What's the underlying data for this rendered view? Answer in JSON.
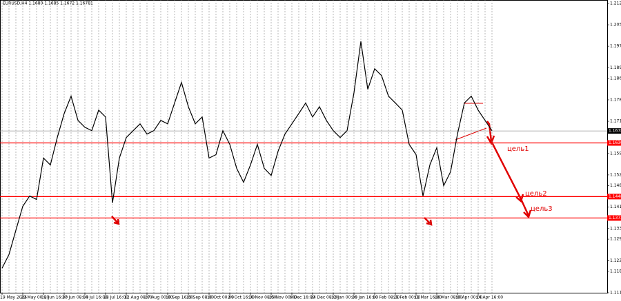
{
  "chart_data": {
    "type": "line",
    "title": "EURUSD,H4 1.1680 1.1685 1.1672 1.16781",
    "categories": [
      "19 May 2025",
      null,
      null,
      "29 May 00:00",
      null,
      null,
      "12 Jun 16:00",
      null,
      null,
      "27 Jun 08:00",
      null,
      null,
      "14 Jul 16:00",
      null,
      null,
      "28 Jul 16:00",
      null,
      null,
      "12 Aug 08:00",
      null,
      null,
      "27 Aug 00:00",
      null,
      null,
      "10 Sep 16:00",
      null,
      null,
      "25 Sep 08:00",
      null,
      null,
      "10 Oct 00:00",
      null,
      null,
      "24 Oct 16:00",
      null,
      null,
      "10 Nov 08:00",
      null,
      null,
      "25 Nov 00:00",
      null,
      null,
      "9 Dec 16:00",
      null,
      null,
      "24 Dec 08:00",
      null,
      null,
      "12 Jan 00:00",
      null,
      null,
      "26 Jan 16:00",
      null,
      null,
      "10 Feb 08:00",
      null,
      null,
      "25 Feb 00:00",
      null,
      null,
      "11 Mar 16:00",
      null,
      null,
      "26 Mar 08:00",
      null,
      null,
      "10 Apr 00:00",
      null,
      null,
      "24 Apr 16:00",
      null,
      null
    ],
    "series": [
      {
        "color": "#000000",
        "values": [
          1.1197,
          1.1245,
          1.133,
          1.1414,
          1.145,
          1.1438,
          1.1583,
          1.1559,
          1.1655,
          1.1739,
          1.18,
          1.1715,
          1.1691,
          1.1679,
          1.1751,
          1.1727,
          1.1426,
          1.1583,
          1.1655,
          1.1679,
          1.1703,
          1.1667,
          1.1679,
          1.1715,
          1.1703,
          1.1776,
          1.1848,
          1.1763,
          1.1703,
          1.1727,
          1.1583,
          1.1595,
          1.1679,
          1.1631,
          1.1547,
          1.1498,
          1.1559,
          1.1631,
          1.1547,
          1.1522,
          1.1607,
          1.1667,
          1.1703,
          1.1739,
          1.1776,
          1.1727,
          1.1763,
          1.1715,
          1.1679,
          1.1655,
          1.1679,
          1.1812,
          1.1992,
          1.1824,
          1.1896,
          1.1872,
          1.18,
          1.1776,
          1.1751,
          1.1631,
          1.1595,
          1.145,
          1.1559,
          1.1619,
          1.1486,
          1.1535,
          1.1667,
          1.1776,
          1.18,
          1.1751,
          1.1715,
          1.1679
        ]
      }
    ],
    "ylim": [
      1.1111,
      1.2137
    ],
    "yticks": [
      1.2125,
      {
        "value": 1.205,
        "label": "1.2050"
      },
      1.1975,
      1.1899,
      1.1862,
      1.1787,
      1.1712,
      1.1599,
      1.1524,
      1.1486,
      1.1411,
      1.1336,
      1.1299,
      1.1223,
      1.1186,
      1.1111
    ],
    "current_price": {
      "value": 1.1678,
      "label": "1.1678"
    },
    "levels": [
      {
        "value": 1.1636,
        "label": "1.1636"
      },
      {
        "value": 1.1448,
        "label": "1.1448"
      },
      {
        "value": 1.1373,
        "label": "1.1373"
      }
    ],
    "level_color": "#ff0000",
    "targets": [
      "цель1",
      "цель2",
      "цель3"
    ],
    "grid": true
  }
}
